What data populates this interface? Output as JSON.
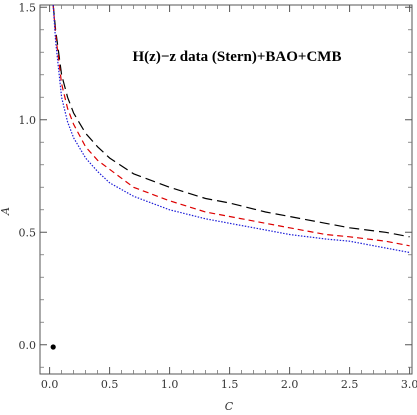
{
  "chart_data": {
    "type": "line",
    "title": "H(z)−z data (Stern)+BAO+CMB",
    "xlabel": "C",
    "ylabel": "A",
    "xlim": [
      -0.08,
      3.02
    ],
    "ylim": [
      -0.13,
      1.51
    ],
    "xticks": [
      "0.0",
      "0.5",
      "1.0",
      "1.5",
      "2.0",
      "2.5",
      "3.0"
    ],
    "yticks": [
      "0.0",
      "0.5",
      "1.0",
      "1.5"
    ],
    "grid": false,
    "series": [
      {
        "color": "#000000",
        "dash": "long-dash",
        "x": [
          0.03,
          0.05,
          0.1,
          0.15,
          0.2,
          0.3,
          0.4,
          0.5,
          0.7,
          1.0,
          1.3,
          1.5,
          1.8,
          2.0,
          2.3,
          2.5,
          2.8,
          3.0
        ],
        "values": [
          1.51,
          1.4,
          1.2,
          1.1,
          1.03,
          0.94,
          0.88,
          0.83,
          0.76,
          0.7,
          0.65,
          0.63,
          0.59,
          0.57,
          0.54,
          0.52,
          0.5,
          0.48
        ]
      },
      {
        "color": "#dd0000",
        "dash": "short-dash",
        "x": [
          0.03,
          0.05,
          0.1,
          0.15,
          0.2,
          0.3,
          0.4,
          0.5,
          0.7,
          1.0,
          1.3,
          1.5,
          1.8,
          2.0,
          2.3,
          2.5,
          2.8,
          3.0
        ],
        "values": [
          1.51,
          1.38,
          1.16,
          1.05,
          0.98,
          0.88,
          0.82,
          0.78,
          0.7,
          0.64,
          0.59,
          0.57,
          0.54,
          0.52,
          0.49,
          0.48,
          0.46,
          0.44
        ]
      },
      {
        "color": "#1c1cd8",
        "dash": "dotted",
        "x": [
          0.03,
          0.05,
          0.1,
          0.15,
          0.2,
          0.3,
          0.4,
          0.5,
          0.7,
          1.0,
          1.3,
          1.5,
          1.8,
          2.0,
          2.3,
          2.5,
          2.8,
          3.0
        ],
        "values": [
          1.51,
          1.35,
          1.1,
          0.99,
          0.92,
          0.83,
          0.77,
          0.72,
          0.66,
          0.6,
          0.56,
          0.54,
          0.51,
          0.49,
          0.47,
          0.46,
          0.43,
          0.41
        ]
      }
    ],
    "points": [
      {
        "x": 0.03,
        "y": -0.01,
        "color": "#000000"
      }
    ]
  }
}
